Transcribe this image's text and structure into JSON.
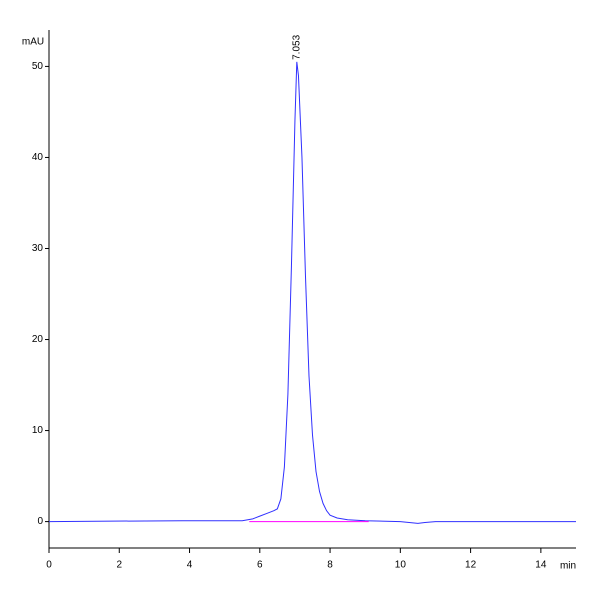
{
  "chart_data": {
    "type": "line",
    "x_label": "min",
    "y_label": "mAU",
    "annotations": [
      {
        "text": "7.053",
        "x": 7.053,
        "y": 50.5
      }
    ],
    "series": [
      {
        "color": "#3030ff",
        "x": [
          0,
          3.8,
          5.5,
          5.8,
          6.0,
          6.2,
          6.4,
          6.5,
          6.6,
          6.7,
          6.8,
          6.9,
          7.0,
          7.053,
          7.1,
          7.2,
          7.3,
          7.4,
          7.5,
          7.6,
          7.7,
          7.8,
          7.9,
          8.0,
          8.2,
          8.5,
          9.0,
          10.0,
          10.5,
          10.7,
          11.0,
          15.0
        ],
        "values": [
          0,
          0.1,
          0.1,
          0.3,
          0.6,
          0.9,
          1.2,
          1.4,
          2.5,
          6,
          14,
          28,
          44,
          50.5,
          49,
          40,
          27,
          16,
          9.5,
          5.5,
          3.3,
          2,
          1.2,
          0.7,
          0.4,
          0.2,
          0.1,
          0,
          -0.2,
          -0.1,
          0,
          0
        ]
      },
      {
        "color": "#ff00ff",
        "x": [
          5.7,
          9.1
        ],
        "values": [
          0,
          0
        ]
      }
    ],
    "xlim": [
      0,
      15
    ],
    "xticks": [
      0,
      2,
      4,
      6,
      8,
      10,
      12,
      14
    ],
    "ylim": [
      -2.9,
      54
    ],
    "yticks": [
      0,
      10,
      20,
      30,
      40,
      50
    ]
  }
}
